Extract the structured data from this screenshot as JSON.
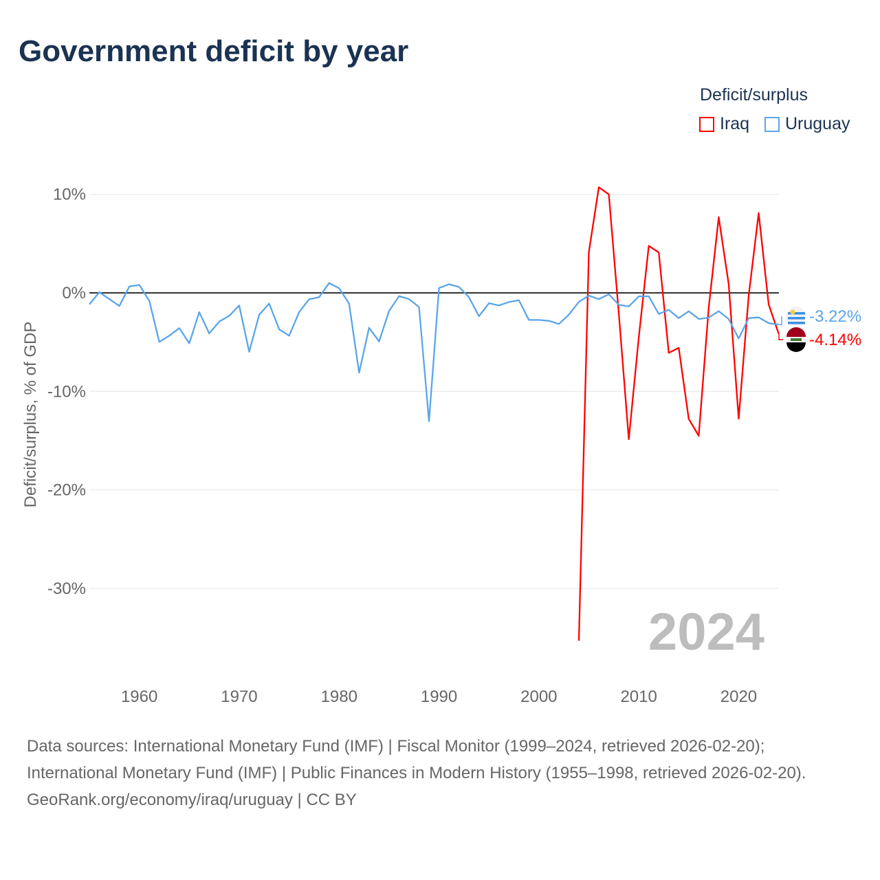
{
  "title": "Government deficit by year",
  "legend": {
    "title": "Deficit/surplus",
    "items": [
      {
        "name": "Iraq",
        "color": "#ff0000"
      },
      {
        "name": "Uruguay",
        "color": "#5aa5ea"
      }
    ]
  },
  "year_label": "2024",
  "footer": {
    "sources": "Data sources: International Monetary Fund (IMF) | Fiscal Monitor (1999–2024, retrieved 2026-02-20); International Monetary Fund (IMF) | Public Finances in Modern History (1955–1998, retrieved 2026-02-20).",
    "credit": "GeoRank.org/economy/iraq/uruguay | CC BY"
  },
  "chart_data": {
    "type": "line",
    "title": "Government deficit by year",
    "xlabel": "",
    "ylabel": "Deficit/surplus, % of GDP",
    "xlim": [
      1955,
      2024
    ],
    "ylim": [
      -38,
      11
    ],
    "xticks": [
      1960,
      1970,
      1980,
      1990,
      2000,
      2010,
      2020
    ],
    "yticks": [
      {
        "v": 10,
        "label": "10%"
      },
      {
        "v": 0,
        "label": "0%"
      },
      {
        "v": -10,
        "label": "-10%"
      },
      {
        "v": -20,
        "label": "-20%"
      },
      {
        "v": -30,
        "label": "-30%"
      }
    ],
    "grid": true,
    "series": [
      {
        "name": "Uruguay",
        "color": "#5aa5ea",
        "end_label": "-3.22%",
        "start_year": 1955,
        "values": [
          -1.16,
          0.07,
          -0.63,
          -1.33,
          0.65,
          0.81,
          -0.81,
          -4.98,
          -4.35,
          -3.58,
          -5.12,
          -1.95,
          -4.12,
          -2.91,
          -2.33,
          -1.28,
          -5.98,
          -2.21,
          -1.09,
          -3.7,
          -4.35,
          -1.95,
          -0.65,
          -0.44,
          1.0,
          0.47,
          -1.09,
          -8.1,
          -3.54,
          -4.93,
          -1.84,
          -0.33,
          -0.63,
          -1.44,
          -13.03,
          0.49,
          0.88,
          0.6,
          -0.44,
          -2.37,
          -1.05,
          -1.28,
          -0.93,
          -0.74,
          -2.75,
          -2.75,
          -2.84,
          -3.16,
          -2.21,
          -0.91,
          -0.28,
          -0.63,
          -0.14,
          -1.21,
          -1.37,
          -0.35,
          -0.35,
          -2.14,
          -1.72,
          -2.56,
          -1.86,
          -2.65,
          -2.51,
          -1.86,
          -2.65,
          -4.63,
          -2.56,
          -2.49,
          -3.07,
          -3.22
        ]
      },
      {
        "name": "Iraq",
        "color": "#ff0000",
        "end_label": "-4.14%",
        "start_year": 2004,
        "values": [
          -35.3,
          4.14,
          10.72,
          10.0,
          -2.1,
          -14.86,
          -4.5,
          4.77,
          4.1,
          -6.09,
          -5.58,
          -12.79,
          -14.51,
          -1.5,
          7.68,
          0.88,
          -12.77,
          -0.3,
          8.1,
          -1.16,
          -4.14
        ]
      }
    ]
  }
}
